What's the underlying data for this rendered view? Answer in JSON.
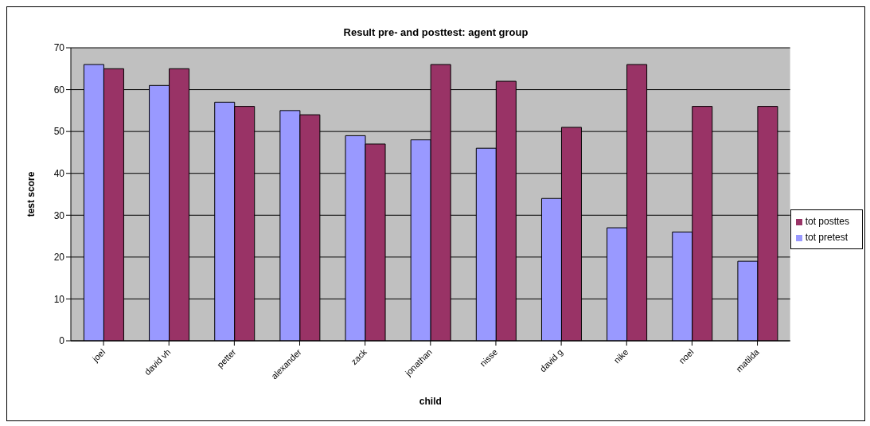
{
  "chart_data": {
    "type": "bar",
    "title": "Result pre- and posttest: agent group",
    "xlabel": "child",
    "ylabel": "test score",
    "categories": [
      "joel",
      "david vh",
      "petter",
      "alexander",
      "zack",
      "jonathan",
      "nisse",
      "david g",
      "nike",
      "noel",
      "matilda"
    ],
    "series": [
      {
        "name": "tot pretest",
        "color": "#9999ff",
        "values": [
          66,
          61,
          57,
          55,
          49,
          48,
          46,
          34,
          27,
          26,
          19
        ]
      },
      {
        "name": "tot posttes",
        "color": "#993366",
        "values": [
          65,
          65,
          56,
          54,
          47,
          66,
          62,
          51,
          66,
          56,
          56
        ]
      }
    ],
    "ylim": [
      0,
      70
    ],
    "yticks": [
      0,
      10,
      20,
      30,
      40,
      50,
      60,
      70
    ],
    "grid": "y",
    "legend": "right"
  }
}
